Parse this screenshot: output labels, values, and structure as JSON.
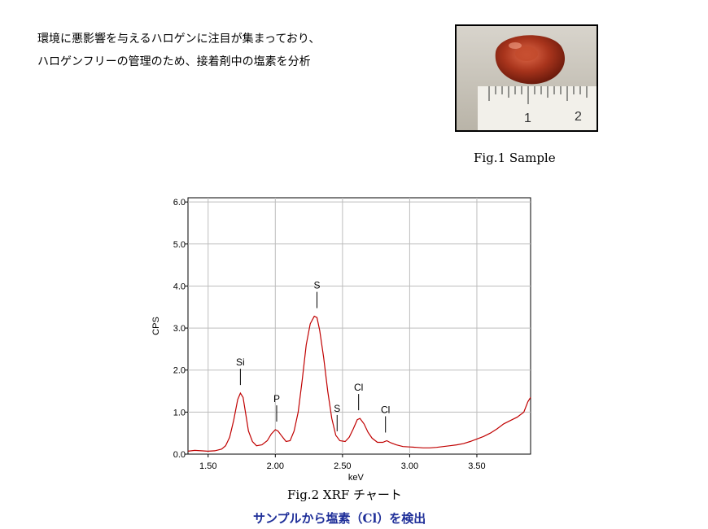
{
  "intro": {
    "line1": "環境に悪影響を与えるハロゲンに注目が集まっており、",
    "line2": "ハロゲンフリーの管理のため、接着剤中の塩素を分析"
  },
  "figure1": {
    "caption": "Fig.1 Sample",
    "ruler_labels": [
      "1",
      "2"
    ]
  },
  "figure2": {
    "caption": "Fig.2 XRF チャート"
  },
  "result_text": "サンプルから塩素（Cl）を検出",
  "chart_data": {
    "type": "line",
    "title": "",
    "xlabel": "keV",
    "ylabel": "CPS",
    "xlim": [
      1.35,
      3.9
    ],
    "ylim": [
      0,
      6.1
    ],
    "xticks": [
      1.5,
      2.0,
      2.5,
      3.0,
      3.5
    ],
    "xtick_labels": [
      "1.50",
      "2.00",
      "2.50",
      "3.00",
      "3.50"
    ],
    "yticks": [
      0,
      1,
      2,
      3,
      4,
      5,
      6
    ],
    "ytick_labels": [
      "0.0",
      "1.0",
      "2.0",
      "3.0",
      "4.0",
      "5.0",
      "6.0"
    ],
    "grid": true,
    "series": [
      {
        "color": "#c00000",
        "points": [
          [
            1.35,
            0.07
          ],
          [
            1.4,
            0.09
          ],
          [
            1.45,
            0.08
          ],
          [
            1.5,
            0.07
          ],
          [
            1.55,
            0.08
          ],
          [
            1.6,
            0.12
          ],
          [
            1.63,
            0.2
          ],
          [
            1.66,
            0.4
          ],
          [
            1.69,
            0.8
          ],
          [
            1.72,
            1.3
          ],
          [
            1.74,
            1.45
          ],
          [
            1.76,
            1.35
          ],
          [
            1.78,
            0.95
          ],
          [
            1.8,
            0.55
          ],
          [
            1.83,
            0.3
          ],
          [
            1.86,
            0.2
          ],
          [
            1.9,
            0.22
          ],
          [
            1.94,
            0.32
          ],
          [
            1.97,
            0.48
          ],
          [
            2.0,
            0.58
          ],
          [
            2.02,
            0.55
          ],
          [
            2.05,
            0.42
          ],
          [
            2.08,
            0.3
          ],
          [
            2.11,
            0.32
          ],
          [
            2.14,
            0.55
          ],
          [
            2.17,
            1.0
          ],
          [
            2.2,
            1.75
          ],
          [
            2.23,
            2.6
          ],
          [
            2.26,
            3.1
          ],
          [
            2.29,
            3.28
          ],
          [
            2.31,
            3.25
          ],
          [
            2.33,
            2.95
          ],
          [
            2.36,
            2.3
          ],
          [
            2.39,
            1.5
          ],
          [
            2.42,
            0.85
          ],
          [
            2.45,
            0.45
          ],
          [
            2.48,
            0.32
          ],
          [
            2.52,
            0.3
          ],
          [
            2.55,
            0.4
          ],
          [
            2.58,
            0.6
          ],
          [
            2.61,
            0.82
          ],
          [
            2.63,
            0.85
          ],
          [
            2.66,
            0.72
          ],
          [
            2.69,
            0.52
          ],
          [
            2.72,
            0.38
          ],
          [
            2.76,
            0.28
          ],
          [
            2.8,
            0.28
          ],
          [
            2.83,
            0.32
          ],
          [
            2.86,
            0.27
          ],
          [
            2.9,
            0.22
          ],
          [
            2.95,
            0.18
          ],
          [
            3.0,
            0.17
          ],
          [
            3.05,
            0.16
          ],
          [
            3.1,
            0.15
          ],
          [
            3.15,
            0.15
          ],
          [
            3.2,
            0.16
          ],
          [
            3.25,
            0.18
          ],
          [
            3.3,
            0.2
          ],
          [
            3.35,
            0.22
          ],
          [
            3.4,
            0.25
          ],
          [
            3.45,
            0.3
          ],
          [
            3.5,
            0.36
          ],
          [
            3.55,
            0.42
          ],
          [
            3.6,
            0.5
          ],
          [
            3.65,
            0.6
          ],
          [
            3.7,
            0.72
          ],
          [
            3.75,
            0.8
          ],
          [
            3.8,
            0.88
          ],
          [
            3.85,
            1.0
          ],
          [
            3.88,
            1.25
          ],
          [
            3.9,
            1.35
          ]
        ]
      }
    ],
    "annotations": [
      {
        "label": "Si",
        "x": 1.74,
        "y": 1.45
      },
      {
        "label": "P",
        "x": 2.01,
        "y": 0.58
      },
      {
        "label": "S",
        "x": 2.31,
        "y": 3.28
      },
      {
        "label": "S",
        "x": 2.46,
        "y": 0.35
      },
      {
        "label": "Cl",
        "x": 2.62,
        "y": 0.85
      },
      {
        "label": "Cl",
        "x": 2.82,
        "y": 0.32
      }
    ]
  }
}
